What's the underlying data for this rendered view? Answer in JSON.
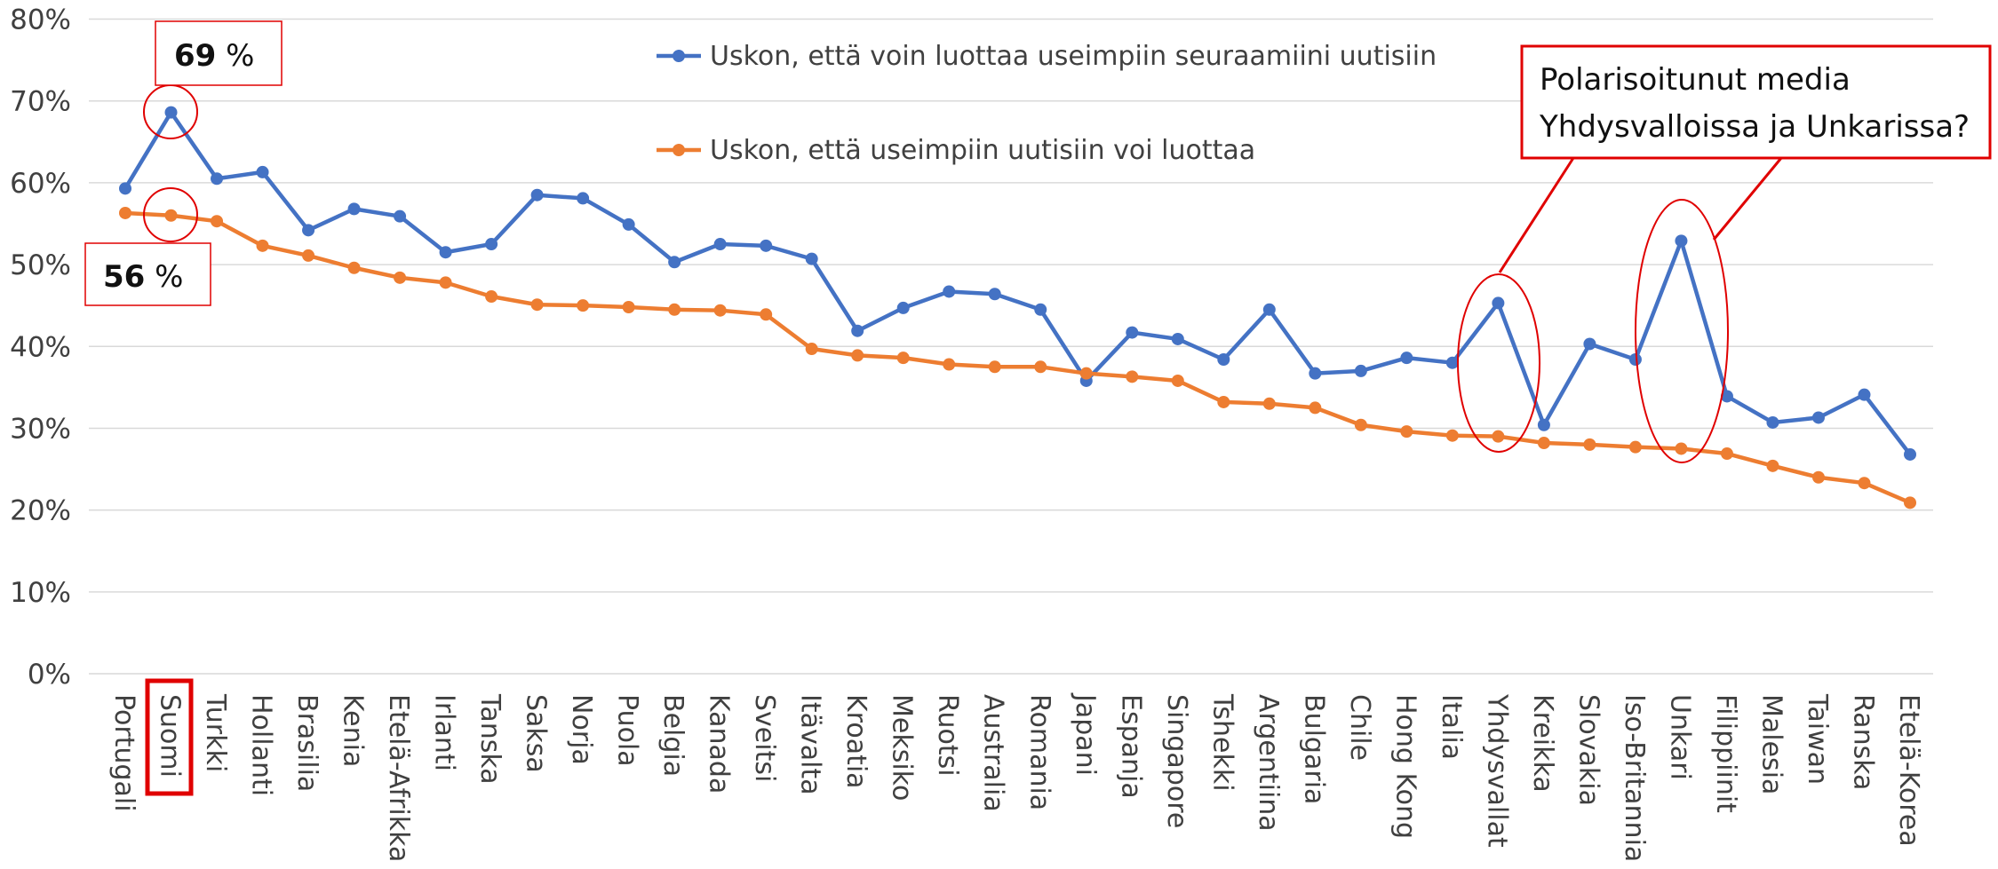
{
  "chart_data": {
    "type": "line",
    "categories": [
      "Portugali",
      "Suomi",
      "Turkki",
      "Hollanti",
      "Brasilia",
      "Kenia",
      "Etelä-Afrikka",
      "Irlanti",
      "Tanska",
      "Saksa",
      "Norja",
      "Puola",
      "Belgia",
      "Kanada",
      "Sveitsi",
      "Itävalta",
      "Kroatia",
      "Meksiko",
      "Ruotsi",
      "Australia",
      "Romania",
      "Japani",
      "Espanja",
      "Singapore",
      "Tshekki",
      "Argentiina",
      "Bulgaria",
      "Chile",
      "Hong Kong",
      "Italia",
      "Yhdysvallat",
      "Kreikka",
      "Slovakia",
      "Iso-Britannia",
      "Unkari",
      "Filippiinit",
      "Malesia",
      "Taiwan",
      "Ranska",
      "Etelä-Korea"
    ],
    "series": [
      {
        "name": "Uskon, että voin luottaa useimpiin seuraamiini uutisiin",
        "color": "#4472c4",
        "values": [
          59.3,
          68.6,
          60.5,
          61.3,
          54.2,
          56.8,
          55.9,
          51.5,
          52.5,
          58.5,
          58.1,
          54.9,
          50.3,
          52.5,
          52.3,
          50.7,
          41.9,
          44.7,
          46.7,
          46.4,
          44.5,
          35.8,
          41.7,
          40.9,
          38.4,
          44.5,
          36.7,
          37.0,
          38.6,
          38.0,
          45.3,
          30.4,
          40.3,
          38.4,
          52.9,
          33.9,
          30.7,
          31.3,
          34.1,
          26.8
        ]
      },
      {
        "name": "Uskon, että useimpiin uutisiin voi luottaa",
        "color": "#ed7d31",
        "values": [
          56.3,
          56.0,
          55.3,
          52.3,
          51.1,
          49.6,
          48.4,
          47.8,
          46.1,
          45.1,
          45.0,
          44.8,
          44.5,
          44.4,
          43.9,
          39.7,
          38.9,
          38.6,
          37.8,
          37.5,
          37.5,
          36.7,
          36.3,
          35.8,
          33.2,
          33.0,
          32.5,
          30.4,
          29.6,
          29.1,
          29.0,
          28.2,
          28.0,
          27.7,
          27.5,
          26.9,
          25.4,
          24.0,
          23.3,
          20.9
        ]
      }
    ],
    "ylim": [
      0,
      80
    ],
    "yticks": [
      {
        "value": 0,
        "label": "0%"
      },
      {
        "value": 10,
        "label": "10%"
      },
      {
        "value": 20,
        "label": "20%"
      },
      {
        "value": 30,
        "label": "30%"
      },
      {
        "value": 40,
        "label": "40%"
      },
      {
        "value": 50,
        "label": "50%"
      },
      {
        "value": 60,
        "label": "60%"
      },
      {
        "value": 70,
        "label": "70%"
      },
      {
        "value": 80,
        "label": "80%"
      }
    ],
    "grid": true,
    "annotations": [
      {
        "number": "69",
        "unit": "%"
      },
      {
        "number": "56",
        "unit": "%"
      },
      {
        "lines": [
          "Polarisoitunut media",
          "Yhdysvalloissa ja Unkarissa?"
        ]
      }
    ]
  }
}
